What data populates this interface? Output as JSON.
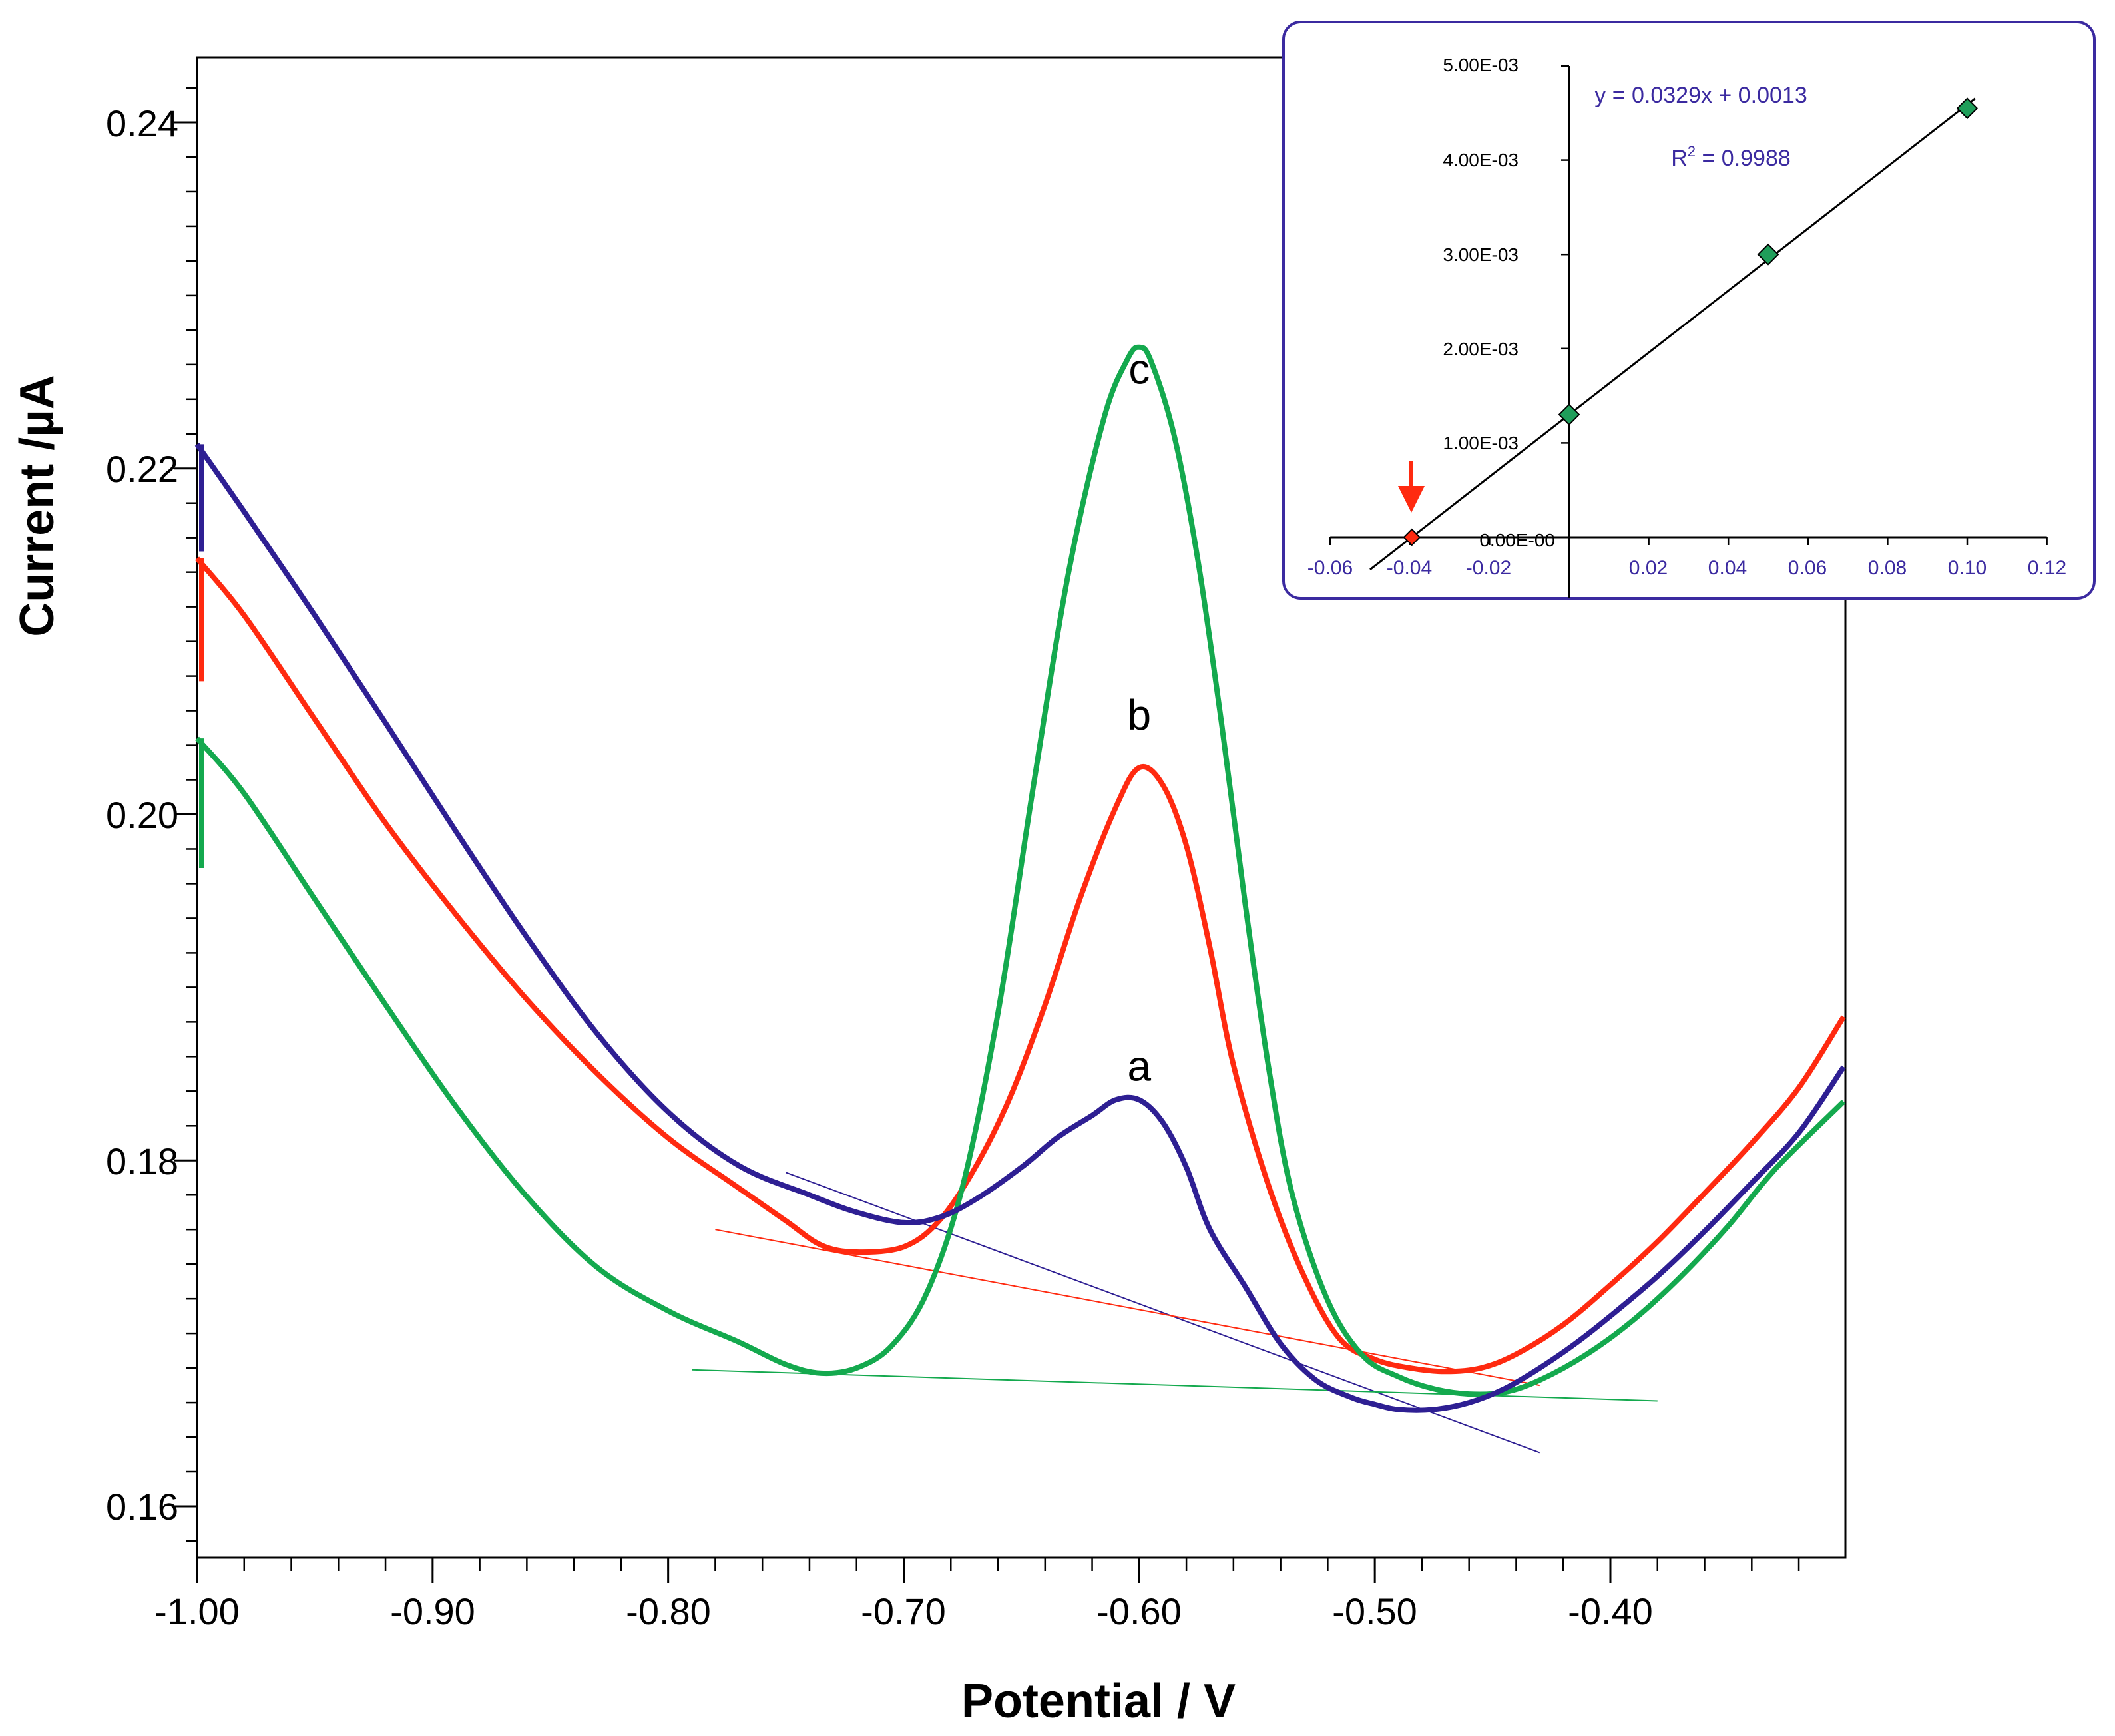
{
  "chart_data": [
    {
      "type": "line",
      "title": "",
      "xlabel": "Potential / V",
      "ylabel": "Current /µA",
      "xlim": [
        -1.0,
        -0.3
      ],
      "ylim": [
        0.156,
        0.244
      ],
      "x_ticks": [
        "-1.00",
        "-0.90",
        "-0.80",
        "-0.70",
        "-0.60",
        "-0.50",
        "-0.40"
      ],
      "y_ticks": [
        "0.16",
        "0.18",
        "0.20",
        "0.22",
        "0.24"
      ],
      "colors": {
        "a": "#2e1f93",
        "b": "#ff2a10",
        "c": "#14a94e"
      },
      "series": [
        {
          "name": "a",
          "x": [
            -1.0,
            -0.98,
            -0.95,
            -0.92,
            -0.89,
            -0.86,
            -0.83,
            -0.8,
            -0.77,
            -0.74,
            -0.72,
            -0.7,
            -0.685,
            -0.67,
            -0.65,
            -0.635,
            -0.62,
            -0.61,
            -0.6,
            -0.59,
            -0.58,
            -0.57,
            -0.555,
            -0.54,
            -0.525,
            -0.51,
            -0.5,
            -0.49,
            -0.475,
            -0.46,
            -0.445,
            -0.43,
            -0.415,
            -0.4,
            -0.38,
            -0.36,
            -0.34,
            -0.32,
            -0.301
          ],
          "y": [
            0.2214,
            0.2175,
            0.2115,
            0.2053,
            0.199,
            0.1929,
            0.1873,
            0.1828,
            0.1797,
            0.178,
            0.177,
            0.1764,
            0.1767,
            0.1777,
            0.1796,
            0.1813,
            0.1826,
            0.1835,
            0.1835,
            0.1822,
            0.1796,
            0.176,
            0.1727,
            0.1694,
            0.1673,
            0.1663,
            0.1659,
            0.1656,
            0.1656,
            0.166,
            0.1668,
            0.168,
            0.1694,
            0.171,
            0.1733,
            0.1759,
            0.1787,
            0.1816,
            0.1854
          ]
        },
        {
          "name": "b",
          "x": [
            -1.0,
            -0.98,
            -0.95,
            -0.92,
            -0.89,
            -0.86,
            -0.83,
            -0.8,
            -0.77,
            -0.75,
            -0.735,
            -0.72,
            -0.7,
            -0.685,
            -0.67,
            -0.655,
            -0.64,
            -0.625,
            -0.61,
            -0.6,
            -0.59,
            -0.58,
            -0.57,
            -0.56,
            -0.545,
            -0.53,
            -0.515,
            -0.5,
            -0.485,
            -0.47,
            -0.455,
            -0.44,
            -0.42,
            -0.4,
            -0.38,
            -0.36,
            -0.34,
            -0.32,
            -0.301
          ],
          "y": [
            0.2148,
            0.2115,
            0.2055,
            0.1995,
            0.1942,
            0.1893,
            0.185,
            0.1813,
            0.1784,
            0.1765,
            0.1751,
            0.1747,
            0.175,
            0.1765,
            0.1795,
            0.1836,
            0.189,
            0.1952,
            0.2004,
            0.2027,
            0.2017,
            0.1982,
            0.1923,
            0.1855,
            0.1785,
            0.1733,
            0.1697,
            0.1685,
            0.168,
            0.1678,
            0.168,
            0.1688,
            0.1705,
            0.1728,
            0.1753,
            0.1781,
            0.181,
            0.1842,
            0.1883
          ]
        },
        {
          "name": "c",
          "x": [
            -1.0,
            -0.98,
            -0.95,
            -0.92,
            -0.89,
            -0.86,
            -0.83,
            -0.8,
            -0.77,
            -0.75,
            -0.735,
            -0.72,
            -0.705,
            -0.69,
            -0.675,
            -0.66,
            -0.645,
            -0.63,
            -0.615,
            -0.605,
            -0.6,
            -0.595,
            -0.585,
            -0.575,
            -0.565,
            -0.555,
            -0.545,
            -0.535,
            -0.52,
            -0.505,
            -0.49,
            -0.475,
            -0.46,
            -0.445,
            -0.43,
            -0.41,
            -0.39,
            -0.37,
            -0.35,
            -0.33,
            -0.301
          ],
          "y": [
            0.2044,
            0.2012,
            0.1951,
            0.189,
            0.1831,
            0.1779,
            0.1738,
            0.1713,
            0.1695,
            0.1682,
            0.1677,
            0.168,
            0.1693,
            0.1724,
            0.1785,
            0.1885,
            0.2016,
            0.214,
            0.2229,
            0.2263,
            0.227,
            0.2262,
            0.2218,
            0.2146,
            0.2052,
            0.1948,
            0.1853,
            0.178,
            0.1719,
            0.1687,
            0.1675,
            0.1668,
            0.1665,
            0.1666,
            0.1673,
            0.1688,
            0.1708,
            0.1733,
            0.1762,
            0.1795,
            0.1834
          ]
        }
      ],
      "start_spikes": [
        {
          "series": "a",
          "from": 0.2214,
          "to": 0.2152
        },
        {
          "series": "b",
          "from": 0.2148,
          "to": 0.2077
        },
        {
          "series": "c",
          "from": 0.2044,
          "to": 0.1969
        }
      ],
      "baselines": [
        {
          "series": "a",
          "x": [
            -0.75,
            -0.43
          ],
          "y": [
            0.1793,
            0.1631
          ]
        },
        {
          "series": "b",
          "x": [
            -0.78,
            -0.43
          ],
          "y": [
            0.176,
            0.167
          ]
        },
        {
          "series": "c",
          "x": [
            -0.79,
            -0.38
          ],
          "y": [
            0.1679,
            0.1661
          ]
        }
      ],
      "curve_labels": [
        {
          "text": "a",
          "x": -0.6,
          "y": 0.1846
        },
        {
          "text": "b",
          "x": -0.6,
          "y": 0.2049
        },
        {
          "text": "c",
          "x": -0.6,
          "y": 0.2249
        }
      ]
    },
    {
      "type": "scatter",
      "name": "inset standard addition plot",
      "xlim": [
        -0.06,
        0.12
      ],
      "ylim": [
        -0.0007,
        0.005
      ],
      "x_ticks": [
        "-0.06",
        "-0.04",
        "-0.02",
        "0.02",
        "0.04",
        "0.06",
        "0.08",
        "0.10",
        "0.12"
      ],
      "y_ticks": [
        "0.00E-00",
        "1.00E-03",
        "2.00E-03",
        "3.00E-03",
        "4.00E-03",
        "5.00E-03"
      ],
      "points": [
        {
          "x": 0.0,
          "y": 0.0013
        },
        {
          "x": 0.05,
          "y": 0.003
        },
        {
          "x": 0.1,
          "y": 0.00455
        }
      ],
      "extrapolated_point": {
        "x": -0.0395,
        "y": 0.0
      },
      "fit": {
        "slope": 0.0329,
        "intercept": 0.0013,
        "x_range": [
          -0.05,
          0.102
        ]
      },
      "equation_text": "y = 0.0329x + 0.0013",
      "r2_prefix": "R",
      "r2_exponent": "2",
      "r2_suffix": " = 0.9988",
      "colors": {
        "frame": "#3b2aa0",
        "marker": "#1f9e5a",
        "arrow": "#ff2a10",
        "line": "#000000"
      }
    }
  ]
}
